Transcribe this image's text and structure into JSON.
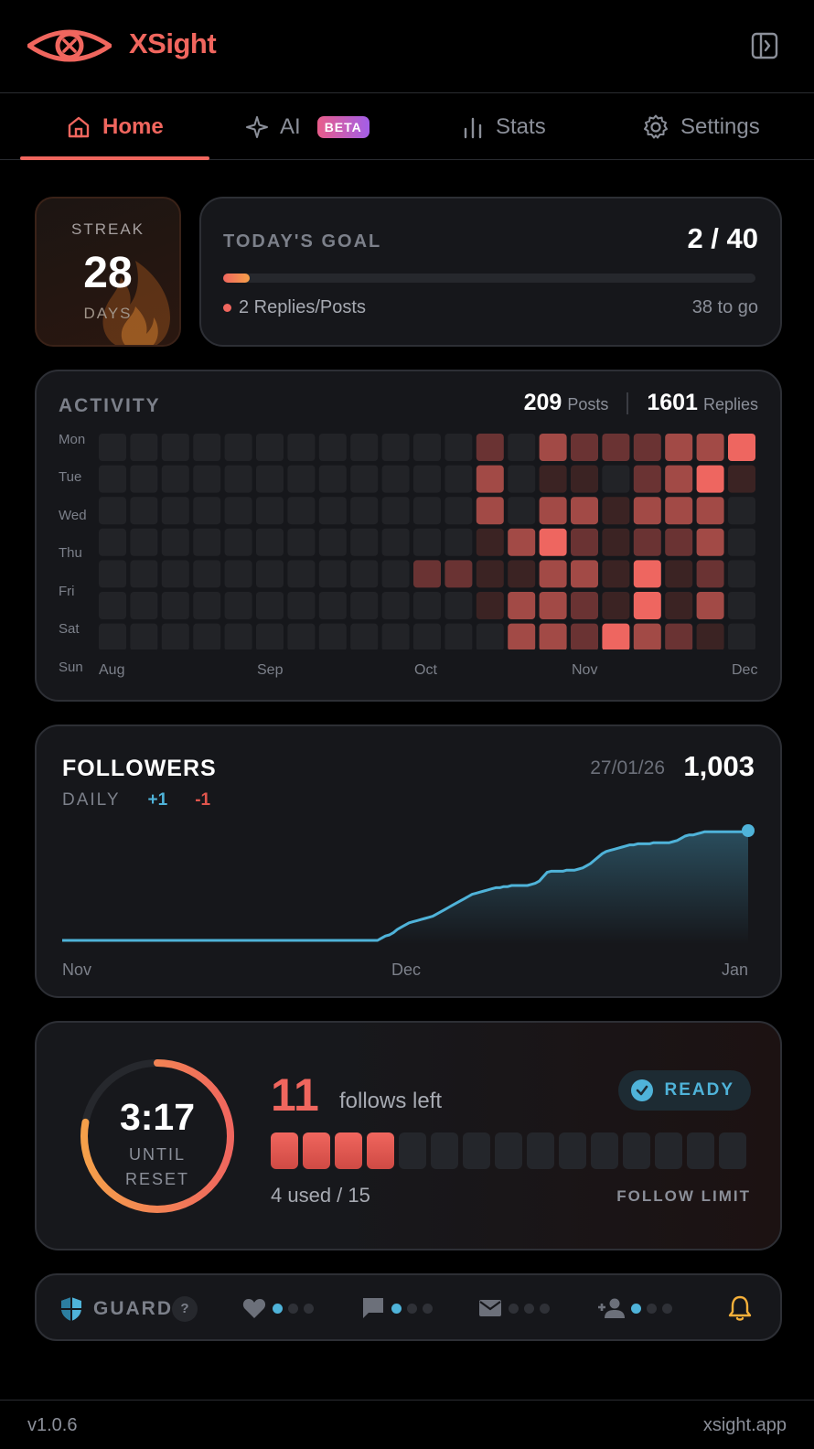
{
  "app": {
    "name": "XSight",
    "brand_color": "#f0665e"
  },
  "nav": {
    "tabs": [
      {
        "label": "Home",
        "active": true,
        "icon": "home-icon"
      },
      {
        "label": "AI",
        "badge": "BETA",
        "icon": "sparkle-icon"
      },
      {
        "label": "Stats",
        "icon": "bar-chart-icon"
      },
      {
        "label": "Settings",
        "icon": "gear-icon"
      }
    ]
  },
  "streak": {
    "label": "STREAK",
    "value": "28",
    "unit": "DAYS"
  },
  "goal": {
    "title": "TODAY'S GOAL",
    "count": "2 / 40",
    "progress": 0.05,
    "sub": "2 Replies/Posts",
    "remaining": "38 to go"
  },
  "activity": {
    "title": "ACTIVITY",
    "posts": "209",
    "posts_label": "Posts",
    "replies": "1601",
    "replies_label": "Replies",
    "days": [
      "Mon",
      "Tue",
      "Wed",
      "Thu",
      "Fri",
      "Sat",
      "Sun"
    ],
    "months": [
      "Aug",
      "Sep",
      "Oct",
      "Nov",
      "Dec"
    ],
    "grid": [
      [
        0,
        0,
        0,
        0,
        0,
        0,
        0,
        0,
        0,
        0,
        0,
        0,
        2,
        0,
        3,
        2,
        2,
        2,
        3,
        3,
        4
      ],
      [
        0,
        0,
        0,
        0,
        0,
        0,
        0,
        0,
        0,
        0,
        0,
        0,
        3,
        0,
        1,
        1,
        0,
        2,
        3,
        4,
        1
      ],
      [
        0,
        0,
        0,
        0,
        0,
        0,
        0,
        0,
        0,
        0,
        0,
        0,
        3,
        0,
        3,
        3,
        1,
        3,
        3,
        3,
        0
      ],
      [
        0,
        0,
        0,
        0,
        0,
        0,
        0,
        0,
        0,
        0,
        0,
        0,
        1,
        3,
        4,
        2,
        1,
        2,
        2,
        3,
        0
      ],
      [
        0,
        0,
        0,
        0,
        0,
        0,
        0,
        0,
        0,
        0,
        2,
        2,
        1,
        1,
        3,
        3,
        1,
        4,
        1,
        2,
        0
      ],
      [
        0,
        0,
        0,
        0,
        0,
        0,
        0,
        0,
        0,
        0,
        0,
        0,
        1,
        3,
        3,
        2,
        1,
        4,
        1,
        3,
        0
      ],
      [
        0,
        0,
        0,
        0,
        0,
        0,
        0,
        0,
        0,
        0,
        0,
        0,
        0,
        3,
        3,
        2,
        4,
        3,
        2,
        1,
        0
      ]
    ],
    "levels": [
      "#222327",
      "#3b2323",
      "#6a3333",
      "#a24a46",
      "#ee6660"
    ]
  },
  "followers": {
    "title": "FOLLOWERS",
    "daily_label": "DAILY",
    "daily_plus": "+1",
    "daily_minus": "-1",
    "date": "27/01/26",
    "count": "1,003",
    "x_labels": [
      "Nov",
      "Dec",
      "Jan"
    ]
  },
  "chart_data": {
    "type": "area",
    "title": "FOLLOWERS",
    "x_labels": [
      "Nov",
      "Dec",
      "Jan"
    ],
    "series": [
      {
        "values": [
          0,
          0,
          0,
          0,
          0,
          0,
          0,
          0,
          0,
          0,
          0,
          0,
          0,
          0,
          0,
          0,
          0,
          0,
          0,
          0,
          0,
          0,
          0,
          0,
          0,
          0,
          0,
          0,
          0,
          0,
          0,
          0,
          0,
          0,
          0,
          0,
          0,
          0,
          0,
          0,
          0,
          0,
          0,
          0,
          0,
          0,
          0,
          0,
          0,
          0,
          0,
          0,
          0,
          0,
          0,
          0,
          0,
          0,
          0,
          0,
          0,
          0,
          0,
          0,
          0,
          0,
          0,
          0,
          0,
          0,
          0,
          0,
          0,
          0,
          0,
          0,
          0,
          0,
          0,
          0,
          0,
          2,
          4,
          5,
          7,
          10,
          12,
          14,
          16,
          17,
          18,
          19,
          20,
          21,
          22,
          24,
          26,
          28,
          30,
          32,
          34,
          36,
          38,
          40,
          42,
          43,
          44,
          45,
          46,
          47,
          48,
          48,
          49,
          49,
          50,
          50,
          50,
          50,
          50,
          51,
          52,
          54,
          58,
          62,
          63,
          63,
          63,
          63,
          64,
          64,
          64,
          65,
          66,
          68,
          70,
          73,
          76,
          79,
          81,
          82,
          83,
          84,
          85,
          86,
          87,
          87,
          88,
          88,
          88,
          88,
          89,
          89,
          89,
          89,
          89,
          90,
          91,
          93,
          95,
          96,
          96,
          97,
          98,
          99,
          99,
          99,
          99,
          99,
          99,
          99,
          99,
          99,
          99,
          99,
          100
        ]
      }
    ],
    "color": "#4fb3d9"
  },
  "follow_limit": {
    "timer": "3:17",
    "timer_sub1": "UNTIL",
    "timer_sub2": "RESET",
    "timer_progress": 0.78,
    "left": "11",
    "left_label": "follows left",
    "status": "READY",
    "used": 4,
    "total": 15,
    "used_text": "4 used / 15",
    "label": "FOLLOW LIMIT"
  },
  "guard": {
    "label": "GUARD",
    "help": "?",
    "items": [
      {
        "icon": "heart-icon",
        "level": 1
      },
      {
        "icon": "comment-icon",
        "level": 1
      },
      {
        "icon": "mail-icon",
        "level": 0
      },
      {
        "icon": "add-user-icon",
        "level": 1
      }
    ],
    "bell_icon": "bell-icon",
    "accent": "#f5b03a"
  },
  "footer": {
    "version": "v1.0.6",
    "site": "xsight.app"
  }
}
